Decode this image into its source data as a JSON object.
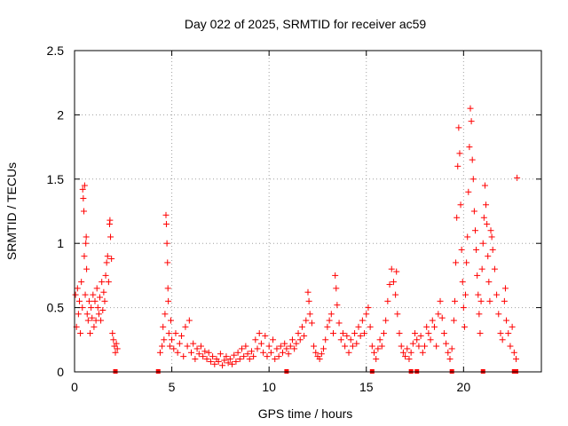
{
  "chart_data": {
    "type": "scatter",
    "title": "Day 022 of 2025, SRMTID for receiver ac59",
    "xlabel": "GPS time / hours",
    "ylabel": "SRMTID / TECUs",
    "xlim": [
      0,
      24
    ],
    "ylim": [
      0,
      2.5
    ],
    "x_ticks": [
      0,
      5,
      10,
      15,
      20
    ],
    "x_tick_labels": [
      "0",
      "5",
      "10",
      "15",
      "20"
    ],
    "y_ticks": [
      0,
      0.5,
      1,
      1.5,
      2,
      2.5
    ],
    "y_tick_labels": [
      "0",
      "0.5",
      "1",
      "1.5",
      "2",
      "2.5"
    ],
    "grid": true,
    "marker": "plus",
    "series": [
      {
        "name": "SRMTID",
        "color": "#ff0000",
        "points": [
          [
            0.05,
            0.6
          ],
          [
            0.1,
            0.35
          ],
          [
            0.15,
            0.65
          ],
          [
            0.2,
            0.45
          ],
          [
            0.25,
            0.55
          ],
          [
            0.3,
            0.3
          ],
          [
            0.35,
            0.7
          ],
          [
            0.4,
            0.5
          ],
          [
            0.42,
            1.42
          ],
          [
            0.45,
            1.35
          ],
          [
            0.48,
            1.25
          ],
          [
            0.5,
            0.9
          ],
          [
            0.52,
            1.45
          ],
          [
            0.55,
            0.6
          ],
          [
            0.58,
            1.0
          ],
          [
            0.6,
            1.05
          ],
          [
            0.62,
            0.8
          ],
          [
            0.65,
            0.45
          ],
          [
            0.7,
            0.4
          ],
          [
            0.75,
            0.55
          ],
          [
            0.8,
            0.3
          ],
          [
            0.85,
            0.5
          ],
          [
            0.9,
            0.42
          ],
          [
            0.95,
            0.6
          ],
          [
            1.0,
            0.35
          ],
          [
            1.05,
            0.55
          ],
          [
            1.1,
            0.4
          ],
          [
            1.15,
            0.65
          ],
          [
            1.2,
            0.5
          ],
          [
            1.25,
            0.45
          ],
          [
            1.3,
            0.58
          ],
          [
            1.35,
            0.4
          ],
          [
            1.4,
            0.7
          ],
          [
            1.45,
            0.48
          ],
          [
            1.5,
            0.62
          ],
          [
            1.55,
            0.55
          ],
          [
            1.6,
            0.75
          ],
          [
            1.65,
            0.85
          ],
          [
            1.7,
            0.9
          ],
          [
            1.75,
            0.7
          ],
          [
            1.8,
            1.15
          ],
          [
            1.82,
            1.18
          ],
          [
            1.85,
            1.05
          ],
          [
            1.9,
            0.88
          ],
          [
            1.95,
            0.3
          ],
          [
            2.0,
            0.25
          ],
          [
            2.05,
            0.2
          ],
          [
            2.1,
            0.15
          ],
          [
            2.15,
            0.22
          ],
          [
            2.2,
            0.18
          ],
          [
            4.4,
            0.15
          ],
          [
            4.5,
            0.2
          ],
          [
            4.55,
            0.35
          ],
          [
            4.6,
            0.25
          ],
          [
            4.65,
            0.45
          ],
          [
            4.7,
            1.22
          ],
          [
            4.72,
            1.15
          ],
          [
            4.75,
            1.0
          ],
          [
            4.78,
            0.85
          ],
          [
            4.8,
            0.65
          ],
          [
            4.82,
            0.55
          ],
          [
            4.85,
            0.3
          ],
          [
            4.9,
            0.2
          ],
          [
            4.95,
            0.4
          ],
          [
            5.0,
            0.25
          ],
          [
            5.1,
            0.18
          ],
          [
            5.2,
            0.3
          ],
          [
            5.3,
            0.15
          ],
          [
            5.4,
            0.22
          ],
          [
            5.5,
            0.28
          ],
          [
            5.6,
            0.12
          ],
          [
            5.7,
            0.35
          ],
          [
            5.8,
            0.2
          ],
          [
            5.9,
            0.4
          ],
          [
            6.0,
            0.15
          ],
          [
            6.1,
            0.22
          ],
          [
            6.2,
            0.1
          ],
          [
            6.3,
            0.18
          ],
          [
            6.4,
            0.14
          ],
          [
            6.5,
            0.2
          ],
          [
            6.6,
            0.12
          ],
          [
            6.7,
            0.16
          ],
          [
            6.8,
            0.1
          ],
          [
            6.9,
            0.15
          ],
          [
            7.0,
            0.08
          ],
          [
            7.1,
            0.12
          ],
          [
            7.2,
            0.06
          ],
          [
            7.3,
            0.1
          ],
          [
            7.4,
            0.08
          ],
          [
            7.5,
            0.14
          ],
          [
            7.6,
            0.05
          ],
          [
            7.7,
            0.09
          ],
          [
            7.8,
            0.12
          ],
          [
            7.9,
            0.07
          ],
          [
            8.0,
            0.1
          ],
          [
            8.1,
            0.06
          ],
          [
            8.2,
            0.13
          ],
          [
            8.3,
            0.08
          ],
          [
            8.4,
            0.15
          ],
          [
            8.5,
            0.1
          ],
          [
            8.6,
            0.18
          ],
          [
            8.7,
            0.12
          ],
          [
            8.8,
            0.2
          ],
          [
            8.9,
            0.14
          ],
          [
            9.0,
            0.1
          ],
          [
            9.1,
            0.16
          ],
          [
            9.2,
            0.12
          ],
          [
            9.3,
            0.25
          ],
          [
            9.4,
            0.18
          ],
          [
            9.5,
            0.3
          ],
          [
            9.6,
            0.22
          ],
          [
            9.7,
            0.15
          ],
          [
            9.8,
            0.28
          ],
          [
            9.9,
            0.12
          ],
          [
            10.0,
            0.2
          ],
          [
            10.1,
            0.15
          ],
          [
            10.2,
            0.25
          ],
          [
            10.3,
            0.1
          ],
          [
            10.4,
            0.18
          ],
          [
            10.5,
            0.12
          ],
          [
            10.6,
            0.2
          ],
          [
            10.7,
            0.15
          ],
          [
            10.8,
            0.22
          ],
          [
            10.9,
            0.18
          ],
          [
            11.0,
            0.14
          ],
          [
            11.1,
            0.2
          ],
          [
            11.2,
            0.25
          ],
          [
            11.3,
            0.18
          ],
          [
            11.4,
            0.22
          ],
          [
            11.5,
            0.3
          ],
          [
            11.6,
            0.25
          ],
          [
            11.7,
            0.35
          ],
          [
            11.8,
            0.28
          ],
          [
            11.9,
            0.4
          ],
          [
            12.0,
            0.62
          ],
          [
            12.05,
            0.55
          ],
          [
            12.1,
            0.45
          ],
          [
            12.2,
            0.38
          ],
          [
            12.3,
            0.2
          ],
          [
            12.4,
            0.15
          ],
          [
            12.5,
            0.12
          ],
          [
            12.6,
            0.1
          ],
          [
            12.7,
            0.14
          ],
          [
            12.8,
            0.18
          ],
          [
            12.9,
            0.25
          ],
          [
            13.0,
            0.35
          ],
          [
            13.1,
            0.4
          ],
          [
            13.2,
            0.45
          ],
          [
            13.3,
            0.3
          ],
          [
            13.4,
            0.75
          ],
          [
            13.45,
            0.65
          ],
          [
            13.5,
            0.52
          ],
          [
            13.6,
            0.38
          ],
          [
            13.7,
            0.25
          ],
          [
            13.8,
            0.3
          ],
          [
            13.9,
            0.2
          ],
          [
            14.0,
            0.28
          ],
          [
            14.1,
            0.15
          ],
          [
            14.2,
            0.25
          ],
          [
            14.3,
            0.2
          ],
          [
            14.4,
            0.3
          ],
          [
            14.5,
            0.22
          ],
          [
            14.6,
            0.35
          ],
          [
            14.7,
            0.28
          ],
          [
            14.8,
            0.4
          ],
          [
            14.9,
            0.3
          ],
          [
            15.0,
            0.45
          ],
          [
            15.1,
            0.5
          ],
          [
            15.2,
            0.35
          ],
          [
            15.3,
            0.2
          ],
          [
            15.4,
            0.15
          ],
          [
            15.5,
            0.1
          ],
          [
            15.6,
            0.18
          ],
          [
            15.7,
            0.25
          ],
          [
            15.8,
            0.2
          ],
          [
            15.9,
            0.3
          ],
          [
            16.0,
            0.4
          ],
          [
            16.1,
            0.55
          ],
          [
            16.2,
            0.68
          ],
          [
            16.3,
            0.8
          ],
          [
            16.4,
            0.7
          ],
          [
            16.5,
            0.6
          ],
          [
            16.55,
            0.78
          ],
          [
            16.6,
            0.45
          ],
          [
            16.7,
            0.3
          ],
          [
            16.8,
            0.2
          ],
          [
            16.9,
            0.15
          ],
          [
            17.0,
            0.12
          ],
          [
            17.1,
            0.18
          ],
          [
            17.2,
            0.1
          ],
          [
            17.3,
            0.15
          ],
          [
            17.4,
            0.22
          ],
          [
            17.5,
            0.3
          ],
          [
            17.6,
            0.25
          ],
          [
            17.7,
            0.2
          ],
          [
            17.8,
            0.28
          ],
          [
            17.9,
            0.15
          ],
          [
            18.0,
            0.2
          ],
          [
            18.1,
            0.35
          ],
          [
            18.2,
            0.3
          ],
          [
            18.3,
            0.25
          ],
          [
            18.4,
            0.4
          ],
          [
            18.5,
            0.35
          ],
          [
            18.6,
            0.2
          ],
          [
            18.7,
            0.45
          ],
          [
            18.8,
            0.55
          ],
          [
            18.9,
            0.42
          ],
          [
            19.0,
            0.3
          ],
          [
            19.1,
            0.22
          ],
          [
            19.2,
            0.15
          ],
          [
            19.3,
            0.1
          ],
          [
            19.4,
            0.18
          ],
          [
            19.5,
            0.4
          ],
          [
            19.55,
            0.55
          ],
          [
            19.6,
            0.85
          ],
          [
            19.65,
            1.2
          ],
          [
            19.7,
            1.6
          ],
          [
            19.75,
            1.9
          ],
          [
            19.8,
            1.7
          ],
          [
            19.85,
            1.3
          ],
          [
            19.9,
            0.95
          ],
          [
            19.95,
            0.7
          ],
          [
            20.0,
            0.5
          ],
          [
            20.05,
            0.35
          ],
          [
            20.1,
            0.6
          ],
          [
            20.15,
            0.85
          ],
          [
            20.2,
            1.05
          ],
          [
            20.25,
            1.4
          ],
          [
            20.3,
            1.75
          ],
          [
            20.35,
            2.05
          ],
          [
            20.4,
            1.95
          ],
          [
            20.45,
            1.65
          ],
          [
            20.5,
            1.5
          ],
          [
            20.55,
            1.25
          ],
          [
            20.6,
            1.1
          ],
          [
            20.65,
            0.95
          ],
          [
            20.7,
            0.75
          ],
          [
            20.75,
            0.6
          ],
          [
            20.8,
            0.45
          ],
          [
            20.85,
            0.3
          ],
          [
            20.9,
            0.55
          ],
          [
            20.95,
            0.8
          ],
          [
            21.0,
            1.0
          ],
          [
            21.05,
            1.2
          ],
          [
            21.1,
            1.45
          ],
          [
            21.15,
            1.3
          ],
          [
            21.2,
            1.15
          ],
          [
            21.25,
            0.9
          ],
          [
            21.3,
            0.7
          ],
          [
            21.35,
            0.55
          ],
          [
            21.4,
            1.1
          ],
          [
            21.45,
            1.05
          ],
          [
            21.5,
            0.95
          ],
          [
            21.6,
            0.8
          ],
          [
            21.7,
            0.6
          ],
          [
            21.8,
            0.45
          ],
          [
            21.9,
            0.3
          ],
          [
            22.0,
            0.25
          ],
          [
            22.1,
            0.55
          ],
          [
            22.15,
            0.65
          ],
          [
            22.2,
            0.4
          ],
          [
            22.3,
            0.3
          ],
          [
            22.4,
            0.2
          ],
          [
            22.5,
            0.35
          ],
          [
            22.6,
            0.15
          ],
          [
            22.7,
            0.1
          ],
          [
            22.75,
            1.51
          ]
        ]
      }
    ],
    "zero_markers": [
      2.1,
      4.3,
      10.9,
      15.3,
      17.3,
      17.6,
      19.4,
      21.0,
      22.6,
      22.7
    ]
  }
}
